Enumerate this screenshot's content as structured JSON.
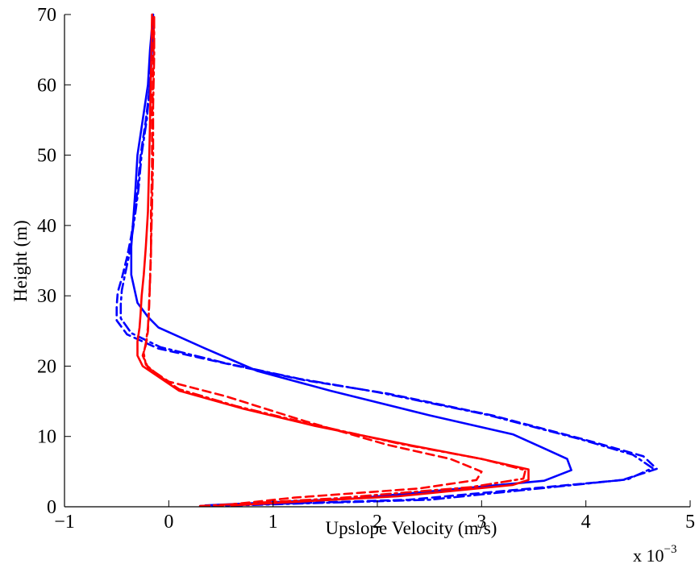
{
  "chart_data": {
    "type": "line",
    "title": "",
    "xlabel": "Upslope Velocity (m/s)",
    "ylabel": "Height (m)",
    "x_exponent_label": "x 10",
    "x_exponent_power": "−3",
    "xlim": [
      -1,
      5
    ],
    "ylim": [
      0,
      70
    ],
    "xticks": [
      -1,
      0,
      1,
      2,
      3,
      4,
      5
    ],
    "xtick_labels": [
      "−1",
      "0",
      "1",
      "2",
      "3",
      "4",
      "5"
    ],
    "yticks": [
      0,
      10,
      20,
      30,
      40,
      50,
      60,
      70
    ],
    "ytick_labels": [
      "0",
      "10",
      "20",
      "30",
      "40",
      "50",
      "60",
      "70"
    ],
    "grid": false,
    "legend": null,
    "series": [
      {
        "color": "#0000ff",
        "style": "solid",
        "points": [
          [
            0.35,
            0.2
          ],
          [
            1.8,
            1.2
          ],
          [
            3.6,
            3.7
          ],
          [
            3.86,
            5.2
          ],
          [
            3.82,
            6.8
          ],
          [
            3.6,
            8.3
          ],
          [
            3.3,
            10.3
          ],
          [
            2.5,
            13.0
          ],
          [
            1.55,
            16.5
          ],
          [
            0.85,
            19.3
          ],
          [
            0.35,
            22.5
          ],
          [
            -0.1,
            25.5
          ],
          [
            -0.2,
            27.0
          ],
          [
            -0.3,
            29.0
          ],
          [
            -0.36,
            33.0
          ],
          [
            -0.36,
            37.0
          ],
          [
            -0.34,
            41.0
          ],
          [
            -0.32,
            45.0
          ],
          [
            -0.3,
            50.0
          ],
          [
            -0.25,
            55.0
          ],
          [
            -0.2,
            60.0
          ],
          [
            -0.18,
            65.0
          ],
          [
            -0.15,
            70.0
          ]
        ]
      },
      {
        "color": "#0000ff",
        "style": "dashed",
        "points": [
          [
            0.3,
            0.1
          ],
          [
            2.3,
            1.0
          ],
          [
            4.35,
            3.8
          ],
          [
            4.68,
            5.4
          ],
          [
            4.55,
            7.2
          ],
          [
            4.0,
            9.5
          ],
          [
            3.1,
            13.0
          ],
          [
            2.1,
            16.1
          ],
          [
            1.3,
            18.0
          ],
          [
            0.6,
            20.2
          ],
          [
            -0.1,
            22.5
          ],
          [
            -0.4,
            24.5
          ],
          [
            -0.5,
            26.5
          ],
          [
            -0.5,
            28.5
          ],
          [
            -0.49,
            30.5
          ],
          [
            -0.45,
            32.5
          ],
          [
            -0.4,
            35.5
          ],
          [
            -0.36,
            38.5
          ],
          [
            -0.33,
            41.5
          ],
          [
            -0.3,
            45.0
          ],
          [
            -0.27,
            50.0
          ],
          [
            -0.22,
            55.0
          ],
          [
            -0.18,
            60.0
          ],
          [
            -0.16,
            65.0
          ],
          [
            -0.15,
            70.0
          ]
        ]
      },
      {
        "color": "#0000ff",
        "style": "dashdot",
        "points": [
          [
            0.42,
            0.1
          ],
          [
            2.5,
            1.0
          ],
          [
            4.4,
            3.9
          ],
          [
            4.64,
            5.5
          ],
          [
            4.45,
            7.4
          ],
          [
            3.95,
            9.6
          ],
          [
            3.05,
            13.1
          ],
          [
            2.0,
            16.3
          ],
          [
            1.25,
            18.2
          ],
          [
            0.55,
            20.4
          ],
          [
            -0.08,
            22.7
          ],
          [
            -0.36,
            24.7
          ],
          [
            -0.46,
            26.8
          ],
          [
            -0.46,
            28.8
          ],
          [
            -0.45,
            30.8
          ],
          [
            -0.42,
            33.0
          ],
          [
            -0.38,
            35.8
          ],
          [
            -0.35,
            38.8
          ],
          [
            -0.32,
            41.8
          ],
          [
            -0.29,
            45.2
          ],
          [
            -0.26,
            50.2
          ],
          [
            -0.21,
            55.2
          ],
          [
            -0.18,
            60.2
          ],
          [
            -0.16,
            65.2
          ],
          [
            -0.14,
            70.0
          ]
        ]
      },
      {
        "color": "#ff0000",
        "style": "solid",
        "points": [
          [
            0.6,
            0.2
          ],
          [
            2.2,
            1.5
          ],
          [
            3.3,
            3.1
          ],
          [
            3.45,
            3.8
          ],
          [
            3.45,
            5.3
          ],
          [
            3.0,
            6.8
          ],
          [
            2.3,
            8.8
          ],
          [
            1.4,
            11.5
          ],
          [
            0.7,
            14.0
          ],
          [
            0.1,
            16.5
          ],
          [
            -0.1,
            18.5
          ],
          [
            -0.25,
            20.0
          ],
          [
            -0.3,
            21.5
          ],
          [
            -0.3,
            23.5
          ],
          [
            -0.28,
            25.5
          ],
          [
            -0.27,
            27.5
          ],
          [
            -0.26,
            30.0
          ],
          [
            -0.24,
            33.0
          ],
          [
            -0.22,
            37.0
          ],
          [
            -0.2,
            42.0
          ],
          [
            -0.19,
            48.0
          ],
          [
            -0.18,
            55.0
          ],
          [
            -0.17,
            62.0
          ],
          [
            -0.16,
            70.0
          ]
        ]
      },
      {
        "color": "#ff0000",
        "style": "dashed",
        "points": [
          [
            0.45,
            0.1
          ],
          [
            1.2,
            1.3
          ],
          [
            2.4,
            2.6
          ],
          [
            2.95,
            3.8
          ],
          [
            3.0,
            5.0
          ],
          [
            2.7,
            6.8
          ],
          [
            2.1,
            8.8
          ],
          [
            1.3,
            12.2
          ],
          [
            0.55,
            15.7
          ],
          [
            0.0,
            17.8
          ],
          [
            -0.2,
            19.8
          ],
          [
            -0.25,
            21.5
          ],
          [
            -0.22,
            23.0
          ],
          [
            -0.2,
            25.0
          ],
          [
            -0.19,
            28.0
          ],
          [
            -0.18,
            32.0
          ],
          [
            -0.17,
            36.0
          ],
          [
            -0.17,
            42.0
          ],
          [
            -0.16,
            48.0
          ],
          [
            -0.16,
            55.0
          ],
          [
            -0.15,
            62.0
          ],
          [
            -0.14,
            70.0
          ]
        ]
      },
      {
        "color": "#ff0000",
        "style": "dashdot",
        "points": [
          [
            0.3,
            0.1
          ],
          [
            1.6,
            1.2
          ],
          [
            2.9,
            2.8
          ],
          [
            3.4,
            4.0
          ],
          [
            3.42,
            5.2
          ],
          [
            3.0,
            6.8
          ],
          [
            2.2,
            9.0
          ],
          [
            1.35,
            11.8
          ],
          [
            0.65,
            14.3
          ],
          [
            0.1,
            16.7
          ],
          [
            -0.1,
            18.7
          ],
          [
            -0.22,
            20.2
          ],
          [
            -0.24,
            21.8
          ],
          [
            -0.22,
            23.3
          ],
          [
            -0.2,
            25.5
          ],
          [
            -0.19,
            28.5
          ],
          [
            -0.18,
            32.5
          ],
          [
            -0.17,
            37.0
          ],
          [
            -0.16,
            43.0
          ],
          [
            -0.15,
            50.0
          ],
          [
            -0.15,
            57.0
          ],
          [
            -0.14,
            64.0
          ],
          [
            -0.14,
            70.0
          ]
        ]
      }
    ]
  }
}
